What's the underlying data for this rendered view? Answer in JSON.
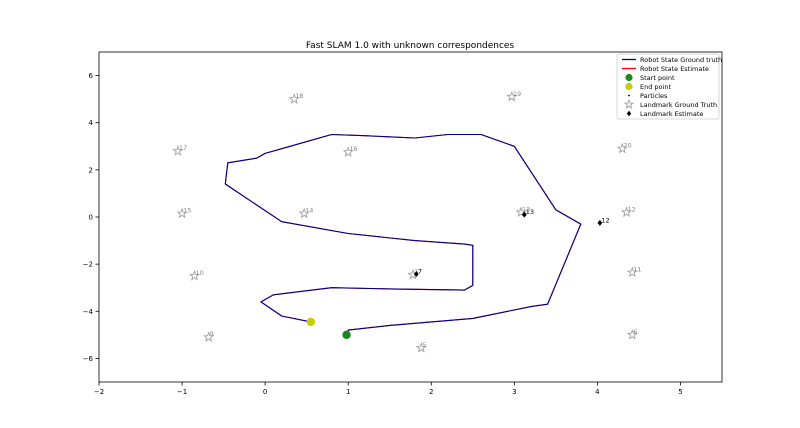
{
  "chart_data": {
    "type": "line",
    "title": "Fast SLAM 1.0 with unknown correspondences",
    "xlabel": "",
    "ylabel": "",
    "xlim": [
      -2,
      5.5
    ],
    "ylim": [
      -7,
      7
    ],
    "xticks": [
      -2,
      -1,
      0,
      1,
      2,
      3,
      4,
      5
    ],
    "yticks": [
      -6,
      -4,
      -2,
      0,
      2,
      4,
      6
    ],
    "grid": false,
    "legend_position": "top-right",
    "colors": {
      "ground_truth": "#00008b",
      "estimate": "#ff0000",
      "start": "#1a8a1a",
      "end": "#c8cc00",
      "landmark_gt": "#a0a0a0",
      "landmark_est": "#000000"
    },
    "legend": [
      {
        "label": "Robot State Ground truth",
        "kind": "line",
        "color": "#00008b"
      },
      {
        "label": "Robot State Estimate",
        "kind": "line",
        "color": "#ff0000"
      },
      {
        "label": "Start point",
        "kind": "dot",
        "color": "#1a8a1a"
      },
      {
        "label": "End point",
        "kind": "dot",
        "color": "#c8cc00"
      },
      {
        "label": "Particles",
        "kind": "small",
        "color": "#000000"
      },
      {
        "label": "Landmark Ground Truth",
        "kind": "star",
        "color": "#a0a0a0"
      },
      {
        "label": "Landmark Estimate",
        "kind": "diamond",
        "color": "#000000"
      }
    ],
    "trajectory": [
      [
        1.0,
        -5.0
      ],
      [
        1.0,
        -4.8
      ],
      [
        1.5,
        -4.6
      ],
      [
        2.5,
        -4.3
      ],
      [
        3.2,
        -3.8
      ],
      [
        3.4,
        -3.7
      ],
      [
        3.8,
        -0.3
      ],
      [
        3.5,
        0.3
      ],
      [
        3.0,
        3.0
      ],
      [
        2.6,
        3.5
      ],
      [
        2.2,
        3.5
      ],
      [
        1.8,
        3.35
      ],
      [
        1.2,
        3.45
      ],
      [
        0.8,
        3.5
      ],
      [
        0.3,
        3.0
      ],
      [
        0.0,
        2.7
      ],
      [
        -0.1,
        2.5
      ],
      [
        -0.45,
        2.3
      ],
      [
        -0.48,
        1.4
      ],
      [
        0.2,
        -0.2
      ],
      [
        1.0,
        -0.7
      ],
      [
        1.8,
        -1.0
      ],
      [
        2.4,
        -1.15
      ],
      [
        2.5,
        -1.2
      ],
      [
        2.5,
        -2.9
      ],
      [
        2.4,
        -3.1
      ],
      [
        1.5,
        -3.05
      ],
      [
        0.8,
        -3.0
      ],
      [
        0.1,
        -3.3
      ],
      [
        -0.05,
        -3.6
      ],
      [
        0.2,
        -4.2
      ],
      [
        0.55,
        -4.45
      ]
    ],
    "start_point": [
      0.98,
      -5.0
    ],
    "end_point": [
      0.55,
      -4.45
    ],
    "landmarks_ground_truth": [
      {
        "id": "6",
        "x": 4.42,
        "y": -5.0
      },
      {
        "id": "5",
        "x": 1.88,
        "y": -5.55
      },
      {
        "id": "9",
        "x": -0.68,
        "y": -5.1
      },
      {
        "id": "10",
        "x": -0.85,
        "y": -2.5
      },
      {
        "id": "11",
        "x": 4.42,
        "y": -2.35
      },
      {
        "id": "7",
        "x": 1.78,
        "y": -2.45
      },
      {
        "id": "15",
        "x": -1.0,
        "y": 0.15
      },
      {
        "id": "14",
        "x": 0.47,
        "y": 0.15
      },
      {
        "id": "13",
        "x": 3.08,
        "y": 0.2
      },
      {
        "id": "12",
        "x": 4.35,
        "y": 0.2
      },
      {
        "id": "17",
        "x": -1.05,
        "y": 2.8
      },
      {
        "id": "16",
        "x": 1.0,
        "y": 2.75
      },
      {
        "id": "20",
        "x": 4.3,
        "y": 2.9
      },
      {
        "id": "18",
        "x": 0.35,
        "y": 5.0
      },
      {
        "id": "19",
        "x": 2.97,
        "y": 5.1
      }
    ],
    "landmarks_estimate": [
      {
        "id": "13",
        "x": 3.12,
        "y": 0.1
      },
      {
        "id": "12",
        "x": 4.03,
        "y": -0.25
      },
      {
        "id": "7",
        "x": 1.82,
        "y": -2.42
      }
    ]
  }
}
